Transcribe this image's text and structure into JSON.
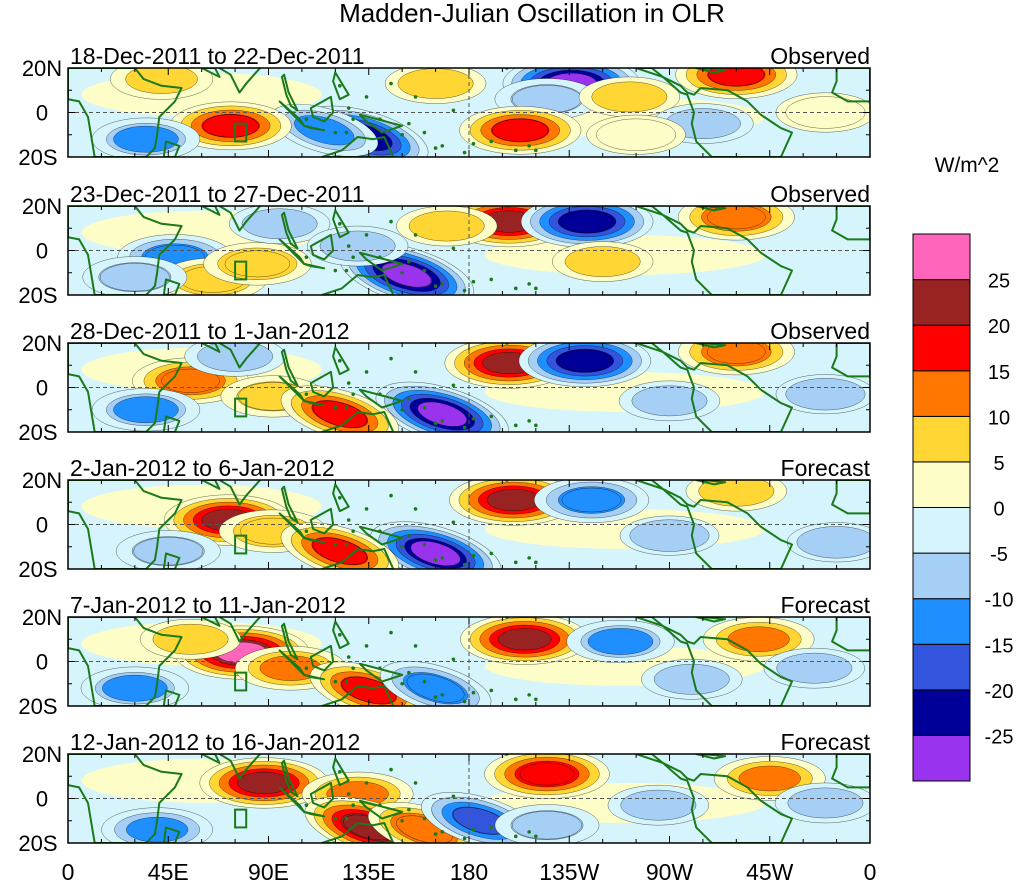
{
  "chart_data": {
    "type": "heatmap",
    "title": "Madden-Julian Oscillation in OLR",
    "units_label": "W/m^2",
    "y_tick_labels": [
      "20N",
      "0",
      "20S"
    ],
    "x_tick_labels": [
      "0",
      "45E",
      "90E",
      "135E",
      "180",
      "135W",
      "90W",
      "45W",
      "0"
    ],
    "x_ticks_deg": [
      0,
      45,
      90,
      135,
      180,
      225,
      270,
      315,
      360
    ],
    "lat_range": [
      -20,
      20
    ],
    "lon_range": [
      0,
      360
    ],
    "colorbar": {
      "levels": [
        "-25",
        "-20",
        "-15",
        "-10",
        "-5",
        "0",
        "5",
        "10",
        "15",
        "20",
        "25"
      ],
      "colors": [
        "#9933ee",
        "#000099",
        "#3355dd",
        "#1f8fff",
        "#a6cff5",
        "#d6f4fc",
        "#fdfdc8",
        "#ffd633",
        "#ff7700",
        "#ff0000",
        "#992222",
        "#ff66bb"
      ]
    },
    "panels": [
      {
        "date_range": "18-Dec-2011 to 22-Dec-2011",
        "status": "Observed",
        "anomalies": [
          {
            "lon": 226,
            "lat": 13,
            "value": -27
          },
          {
            "lon": 215,
            "lat": 6,
            "value": -8
          },
          {
            "lon": 133,
            "lat": -11,
            "value": -24
          },
          {
            "lon": 115,
            "lat": -8,
            "value": -12
          },
          {
            "lon": 73,
            "lat": -6,
            "value": 18
          },
          {
            "lon": 203,
            "lat": -8,
            "value": 18
          },
          {
            "lon": 300,
            "lat": 17,
            "value": 18
          },
          {
            "lon": 42,
            "lat": 15,
            "value": 7
          },
          {
            "lon": 35,
            "lat": -12,
            "value": -10
          },
          {
            "lon": 252,
            "lat": 7,
            "value": 6
          },
          {
            "lon": 165,
            "lat": 13,
            "value": 6
          },
          {
            "lon": 285,
            "lat": -5,
            "value": -6
          },
          {
            "lon": 340,
            "lat": 0,
            "value": 5
          },
          {
            "lon": 255,
            "lat": -10,
            "value": 5
          }
        ]
      },
      {
        "date_range": "23-Dec-2011 to 27-Dec-2011",
        "status": "Observed",
        "anomalies": [
          {
            "lon": 198,
            "lat": 13,
            "value": 22
          },
          {
            "lon": 233,
            "lat": 13,
            "value": -24
          },
          {
            "lon": 152,
            "lat": -11,
            "value": -28
          },
          {
            "lon": 300,
            "lat": 15,
            "value": 15
          },
          {
            "lon": 48,
            "lat": -3,
            "value": -14
          },
          {
            "lon": 65,
            "lat": -13,
            "value": 10
          },
          {
            "lon": 85,
            "lat": -6,
            "value": 10
          },
          {
            "lon": 170,
            "lat": 11,
            "value": 6
          },
          {
            "lon": 240,
            "lat": -5,
            "value": 6
          },
          {
            "lon": 95,
            "lat": 12,
            "value": -6
          },
          {
            "lon": 30,
            "lat": -12,
            "value": -8
          },
          {
            "lon": 130,
            "lat": 2,
            "value": -6
          }
        ]
      },
      {
        "date_range": "28-Dec-2011 to 1-Jan-2012",
        "status": "Observed",
        "anomalies": [
          {
            "lon": 198,
            "lat": 11,
            "value": 22
          },
          {
            "lon": 232,
            "lat": 12,
            "value": -24
          },
          {
            "lon": 55,
            "lat": 3,
            "value": 15
          },
          {
            "lon": 92,
            "lat": -4,
            "value": 8
          },
          {
            "lon": 168,
            "lat": -12,
            "value": -27
          },
          {
            "lon": 122,
            "lat": -12,
            "value": 18
          },
          {
            "lon": 300,
            "lat": 16,
            "value": 15
          },
          {
            "lon": 35,
            "lat": -10,
            "value": -10
          },
          {
            "lon": 75,
            "lat": 14,
            "value": -6
          },
          {
            "lon": 270,
            "lat": -6,
            "value": -6
          },
          {
            "lon": 340,
            "lat": -3,
            "value": -5
          }
        ]
      },
      {
        "date_range": "2-Jan-2012 to 6-Jan-2012",
        "status": "Forecast",
        "anomalies": [
          {
            "lon": 72,
            "lat": 2,
            "value": 22
          },
          {
            "lon": 92,
            "lat": -3,
            "value": 10
          },
          {
            "lon": 200,
            "lat": 11,
            "value": 22
          },
          {
            "lon": 235,
            "lat": 11,
            "value": -14
          },
          {
            "lon": 165,
            "lat": -13,
            "value": -26
          },
          {
            "lon": 122,
            "lat": -12,
            "value": 18
          },
          {
            "lon": 45,
            "lat": -12,
            "value": -8
          },
          {
            "lon": 300,
            "lat": 15,
            "value": 6
          },
          {
            "lon": 345,
            "lat": -8,
            "value": -5
          },
          {
            "lon": 270,
            "lat": -5,
            "value": -5
          }
        ]
      },
      {
        "date_range": "7-Jan-2012 to 11-Jan-2012",
        "status": "Forecast",
        "anomalies": [
          {
            "lon": 78,
            "lat": 4,
            "value": 26
          },
          {
            "lon": 100,
            "lat": -3,
            "value": 12
          },
          {
            "lon": 55,
            "lat": 10,
            "value": 6
          },
          {
            "lon": 135,
            "lat": -13,
            "value": 18
          },
          {
            "lon": 165,
            "lat": -12,
            "value": -14
          },
          {
            "lon": 205,
            "lat": 10,
            "value": 22
          },
          {
            "lon": 248,
            "lat": 9,
            "value": -10
          },
          {
            "lon": 310,
            "lat": 10,
            "value": 12
          },
          {
            "lon": 30,
            "lat": -12,
            "value": -10
          },
          {
            "lon": 280,
            "lat": -8,
            "value": -6
          },
          {
            "lon": 335,
            "lat": -3,
            "value": -6
          }
        ]
      },
      {
        "date_range": "12-Jan-2012 to 16-Jan-2012",
        "status": "Forecast",
        "anomalies": [
          {
            "lon": 88,
            "lat": 7,
            "value": 22
          },
          {
            "lon": 130,
            "lat": 2,
            "value": 12
          },
          {
            "lon": 135,
            "lat": -13,
            "value": 24
          },
          {
            "lon": 160,
            "lat": -14,
            "value": 15
          },
          {
            "lon": 215,
            "lat": 11,
            "value": 20
          },
          {
            "lon": 185,
            "lat": -10,
            "value": -18
          },
          {
            "lon": 215,
            "lat": -12,
            "value": -8
          },
          {
            "lon": 315,
            "lat": 9,
            "value": 12
          },
          {
            "lon": 40,
            "lat": -14,
            "value": -12
          },
          {
            "lon": 265,
            "lat": -3,
            "value": -6
          },
          {
            "lon": 340,
            "lat": -2,
            "value": -6
          }
        ]
      }
    ]
  }
}
